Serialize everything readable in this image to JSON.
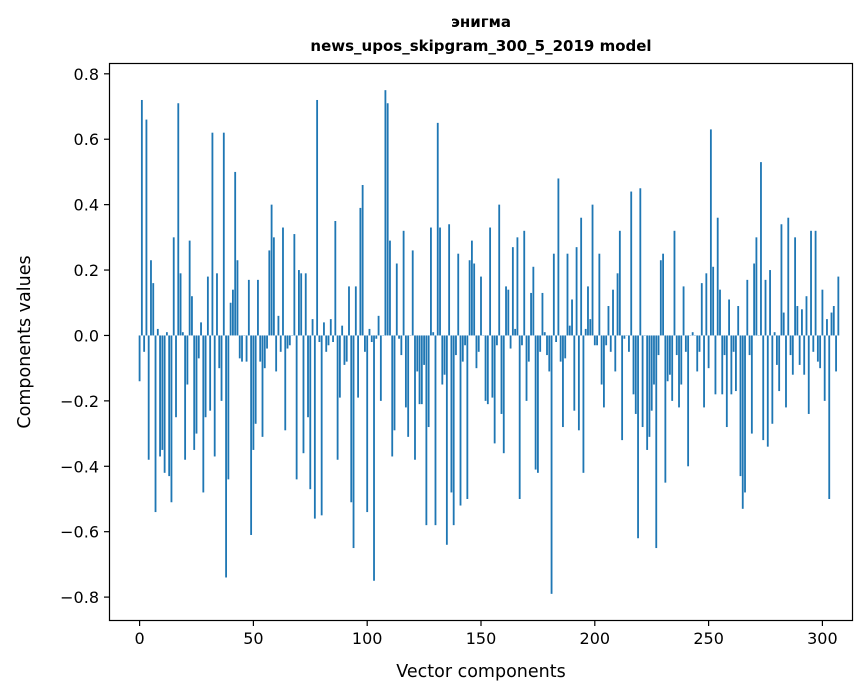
{
  "chart_data": {
    "type": "bar",
    "title_line1": "энигма",
    "title_line2": "news_upos_skipgram_300_5_2019 model",
    "xlabel": "Vector components",
    "ylabel": "Components values",
    "xlim": [
      -13,
      313
    ],
    "ylim": [
      -0.87,
      0.83
    ],
    "xticks": [
      0,
      50,
      100,
      150,
      200,
      250,
      300
    ],
    "xtick_labels": [
      "0",
      "50",
      "100",
      "150",
      "200",
      "250",
      "300"
    ],
    "yticks": [
      0.8,
      0.6,
      0.4,
      0.2,
      0.0,
      -0.2,
      -0.4,
      -0.6,
      -0.8
    ],
    "ytick_labels": [
      "0.8",
      "0.6",
      "0.4",
      "0.2",
      "0.0",
      "−0.2",
      "−0.4",
      "−0.6",
      "−0.8"
    ],
    "bar_color": "#1f77b4",
    "values": [
      -0.14,
      0.72,
      -0.05,
      0.66,
      -0.38,
      0.23,
      0.16,
      -0.54,
      0.02,
      -0.37,
      -0.35,
      -0.42,
      0.01,
      -0.43,
      -0.51,
      0.3,
      -0.25,
      0.71,
      0.19,
      0.01,
      -0.38,
      -0.15,
      0.29,
      0.12,
      -0.35,
      -0.3,
      -0.07,
      0.04,
      -0.48,
      -0.25,
      0.18,
      -0.23,
      0.62,
      -0.37,
      0.19,
      -0.1,
      -0.2,
      0.62,
      -0.74,
      -0.44,
      0.1,
      0.14,
      0.5,
      0.23,
      -0.07,
      -0.08,
      0.0,
      -0.08,
      0.17,
      -0.61,
      -0.35,
      -0.27,
      0.17,
      -0.08,
      -0.31,
      -0.1,
      -0.04,
      0.26,
      0.4,
      0.3,
      -0.11,
      0.06,
      -0.05,
      0.33,
      -0.29,
      -0.04,
      -0.03,
      0.0,
      0.31,
      -0.44,
      0.2,
      0.19,
      -0.36,
      0.19,
      -0.25,
      -0.47,
      0.05,
      -0.56,
      0.72,
      -0.02,
      -0.55,
      0.04,
      -0.05,
      -0.03,
      0.05,
      -0.02,
      0.35,
      -0.38,
      -0.19,
      0.03,
      -0.09,
      -0.08,
      0.15,
      -0.51,
      -0.65,
      0.15,
      -0.19,
      0.39,
      0.46,
      -0.05,
      -0.54,
      0.02,
      -0.02,
      -0.75,
      -0.01,
      0.06,
      -0.2,
      0.0,
      0.75,
      0.71,
      0.29,
      -0.37,
      -0.29,
      0.22,
      -0.01,
      -0.06,
      0.32,
      -0.22,
      -0.31,
      0.0,
      0.26,
      -0.38,
      -0.11,
      -0.21,
      -0.21,
      -0.09,
      -0.58,
      -0.28,
      0.33,
      0.01,
      -0.58,
      0.65,
      0.33,
      -0.15,
      -0.12,
      -0.64,
      0.34,
      -0.48,
      -0.58,
      -0.06,
      0.25,
      -0.52,
      -0.08,
      -0.03,
      -0.5,
      0.23,
      0.29,
      0.22,
      -0.1,
      -0.05,
      0.18,
      0.0,
      -0.2,
      -0.21,
      0.33,
      -0.19,
      -0.33,
      -0.03,
      0.4,
      -0.24,
      -0.36,
      0.15,
      0.14,
      -0.04,
      0.27,
      0.02,
      0.3,
      -0.5,
      -0.03,
      0.32,
      -0.2,
      -0.08,
      0.13,
      0.21,
      -0.41,
      -0.42,
      -0.05,
      0.13,
      0.01,
      -0.06,
      -0.11,
      -0.79,
      0.25,
      -0.02,
      0.48,
      -0.08,
      -0.28,
      -0.07,
      0.25,
      0.03,
      0.11,
      -0.23,
      0.27,
      -0.29,
      0.36,
      -0.42,
      0.02,
      0.15,
      0.05,
      0.4,
      -0.03,
      -0.03,
      0.25,
      -0.15,
      -0.22,
      -0.03,
      0.09,
      -0.05,
      0.14,
      -0.11,
      0.19,
      0.32,
      -0.32,
      -0.01,
      0.0,
      -0.05,
      0.44,
      -0.18,
      -0.24,
      -0.62,
      0.45,
      -0.28,
      0.0,
      -0.35,
      -0.31,
      -0.23,
      -0.15,
      -0.65,
      -0.06,
      0.23,
      0.25,
      -0.45,
      -0.14,
      -0.12,
      -0.2,
      0.32,
      -0.06,
      -0.22,
      -0.15,
      0.15,
      -0.05,
      -0.4,
      0.0,
      0.01,
      0.0,
      -0.11,
      -0.05,
      0.16,
      -0.22,
      0.19,
      -0.1,
      0.63,
      0.21,
      -0.18,
      0.36,
      0.14,
      -0.18,
      -0.06,
      -0.28,
      0.11,
      -0.18,
      -0.05,
      -0.17,
      0.09,
      -0.43,
      -0.53,
      -0.48,
      0.17,
      -0.06,
      -0.3,
      0.22,
      0.3,
      0.0,
      0.53,
      -0.32,
      0.17,
      -0.34,
      0.2,
      -0.27,
      0.01,
      -0.09,
      -0.17,
      0.34,
      0.07,
      -0.22,
      0.36,
      -0.06,
      -0.12,
      0.3,
      0.09,
      -0.09,
      0.08,
      -0.12,
      0.12,
      -0.24,
      0.32,
      -0.05,
      0.32,
      -0.08,
      -0.1,
      0.14,
      -0.2,
      0.05,
      -0.5,
      0.07,
      0.09,
      -0.11,
      0.18
    ]
  }
}
